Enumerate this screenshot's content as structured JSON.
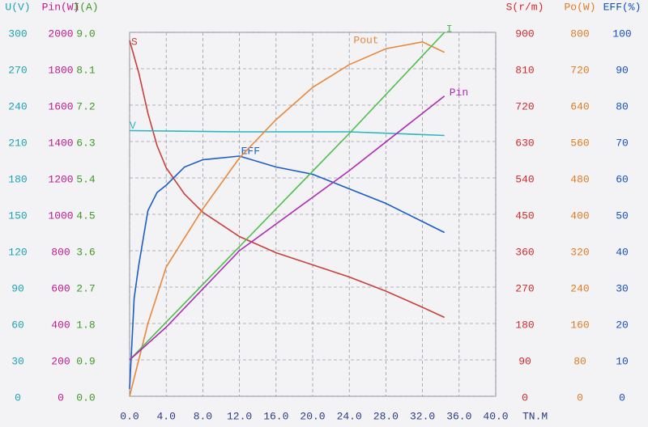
{
  "chart_data": {
    "type": "line",
    "xlabel": "TN.M",
    "xlim": [
      0,
      40
    ],
    "xticks": [
      {
        "value": 0,
        "label": "0.0"
      },
      {
        "value": 4,
        "label": "4.0"
      },
      {
        "value": 8,
        "label": "8.0"
      },
      {
        "value": 12,
        "label": "12.0"
      },
      {
        "value": 16,
        "label": "16.0"
      },
      {
        "value": 20,
        "label": "20.0"
      },
      {
        "value": 24,
        "label": "24.0"
      },
      {
        "value": 28,
        "label": "28.0"
      },
      {
        "value": 32,
        "label": "32.0"
      },
      {
        "value": 36,
        "label": "36.0"
      },
      {
        "value": 40,
        "label": "40.0"
      }
    ],
    "grid": true,
    "axes": [
      {
        "label": "U(V)",
        "side": "left",
        "color": "#1ba3b5",
        "ylim": [
          0,
          300
        ],
        "yticks": [
          0,
          30,
          60,
          90,
          120,
          150,
          180,
          210,
          240,
          270,
          300
        ]
      },
      {
        "label": "Pin(W)",
        "side": "left",
        "color": "#c01a8e",
        "ylim": [
          0,
          2000
        ],
        "yticks": [
          0,
          200,
          400,
          600,
          800,
          1000,
          1200,
          1400,
          1600,
          1800,
          2000
        ]
      },
      {
        "label": "I(A)",
        "side": "left",
        "color": "#3c9a22",
        "ylim": [
          0,
          9
        ],
        "yticks": [
          {
            "value": 0,
            "label": "0.0"
          },
          {
            "value": 0.9,
            "label": "0.9"
          },
          {
            "value": 1.8,
            "label": "1.8"
          },
          {
            "value": 2.7,
            "label": "2.7"
          },
          {
            "value": 3.6,
            "label": "3.6"
          },
          {
            "value": 4.5,
            "label": "4.5"
          },
          {
            "value": 5.4,
            "label": "5.4"
          },
          {
            "value": 6.3,
            "label": "6.3"
          },
          {
            "value": 7.2,
            "label": "7.2"
          },
          {
            "value": 8.1,
            "label": "8.1"
          },
          {
            "value": 9,
            "label": "9.0"
          }
        ]
      },
      {
        "label": "S(r/m)",
        "side": "right",
        "color": "#d42a2a",
        "ylim": [
          0,
          900
        ],
        "yticks": [
          0,
          90,
          180,
          270,
          360,
          450,
          540,
          630,
          720,
          810,
          900
        ]
      },
      {
        "label": "Po(W)",
        "side": "right",
        "color": "#e07c24",
        "ylim": [
          0,
          800
        ],
        "yticks": [
          0,
          80,
          160,
          240,
          320,
          400,
          480,
          560,
          640,
          720,
          800
        ]
      },
      {
        "label": "EFF(%)",
        "side": "right",
        "color": "#1450c2",
        "ylim": [
          0,
          100
        ],
        "yticks": [
          0,
          10,
          20,
          30,
          40,
          50,
          60,
          70,
          80,
          90,
          100
        ]
      }
    ],
    "series": [
      {
        "name": "S",
        "axis": 3,
        "color": "#c8403a",
        "x": [
          0,
          1,
          2,
          3,
          4,
          6,
          8,
          12,
          16,
          20,
          24,
          28,
          32,
          34.4
        ],
        "values": [
          880,
          800,
          700,
          620,
          565,
          500,
          455,
          395,
          355,
          325,
          295,
          260,
          220,
          195
        ]
      },
      {
        "name": "V",
        "axis": 0,
        "color": "#2bb5c0",
        "x": [
          0,
          12,
          24,
          34.4
        ],
        "values": [
          219,
          218,
          218,
          215
        ]
      },
      {
        "name": "EFF",
        "axis": 5,
        "color": "#1a5cc8",
        "x": [
          0,
          0.5,
          1,
          2,
          3,
          4,
          6,
          8,
          12,
          16,
          20,
          24,
          28,
          32,
          34.4
        ],
        "values": [
          2,
          27,
          36,
          51,
          56,
          58,
          63,
          65,
          66,
          63,
          61,
          57,
          53,
          48,
          45
        ]
      },
      {
        "name": "Pout",
        "axis": 4,
        "color": "#e8883a",
        "x": [
          0,
          2,
          4,
          8,
          12,
          16,
          20,
          24,
          28,
          32,
          34.4
        ],
        "values": [
          0,
          160,
          284,
          412,
          524,
          608,
          679,
          729,
          764,
          779,
          756
        ]
      },
      {
        "name": "I",
        "axis": 2,
        "color": "#4cc048",
        "x": [
          0,
          12,
          24,
          34.4
        ],
        "values": [
          0.9,
          3.7,
          6.5,
          9
        ]
      },
      {
        "name": "Pin",
        "axis": 1,
        "color": "#b02ab8",
        "x": [
          0,
          4,
          12,
          24,
          34.4
        ],
        "values": [
          200,
          380,
          800,
          1240,
          1650
        ]
      }
    ]
  }
}
